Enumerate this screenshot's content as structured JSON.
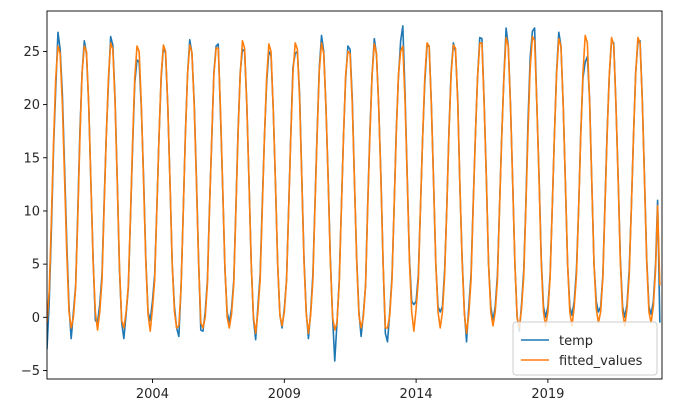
{
  "chart_data": {
    "type": "line",
    "title": "",
    "xlabel": "",
    "ylabel": "",
    "x_unit": "date",
    "xlim": [
      "2000-01-01",
      "2023-05-01"
    ],
    "ylim": [
      -5.8,
      28.8
    ],
    "grid": false,
    "legend": {
      "placement": "lower-right"
    },
    "x_ticks": [
      {
        "date": "2004-01-01",
        "label": "2004"
      },
      {
        "date": "2009-01-01",
        "label": "2009"
      },
      {
        "date": "2014-01-01",
        "label": "2014"
      },
      {
        "date": "2019-01-01",
        "label": "2019"
      }
    ],
    "y_ticks": [
      {
        "value": -5,
        "label": "−5"
      },
      {
        "value": 0,
        "label": "0"
      },
      {
        "value": 5,
        "label": "5"
      },
      {
        "value": 10,
        "label": "10"
      },
      {
        "value": 15,
        "label": "15"
      },
      {
        "value": 20,
        "label": "20"
      },
      {
        "value": 25,
        "label": "25"
      }
    ],
    "series": [
      {
        "name": "temp",
        "color": "#1f77b4",
        "note": "monthly values, starting January 2000",
        "start": "2000-01-01",
        "values": [
          -3.0,
          1.5,
          8.0,
          16.0,
          21.5,
          26.8,
          25.2,
          21.0,
          14.0,
          7.0,
          1.0,
          -2.0,
          0.5,
          3.0,
          9.5,
          17.5,
          23.0,
          26.0,
          24.8,
          20.0,
          12.5,
          5.5,
          -0.3,
          -0.5,
          1.2,
          4.0,
          10.5,
          17.0,
          22.0,
          26.4,
          25.6,
          20.5,
          12.8,
          4.5,
          -0.5,
          -2.0,
          0.3,
          2.8,
          9.0,
          16.0,
          22.0,
          24.2,
          24.0,
          19.5,
          13.0,
          5.5,
          0.5,
          -0.3,
          1.5,
          4.0,
          10.0,
          17.0,
          22.5,
          25.5,
          24.8,
          19.8,
          12.5,
          5.0,
          1.0,
          -1.0,
          -1.8,
          3.0,
          9.5,
          17.2,
          22.8,
          26.1,
          24.8,
          20.3,
          13.2,
          5.5,
          -1.2,
          -1.3,
          0.5,
          3.5,
          10.3,
          16.5,
          23.0,
          25.5,
          25.7,
          19.0,
          12.0,
          4.5,
          0.5,
          -0.5,
          0.8,
          3.5,
          10.0,
          17.5,
          23.0,
          25.2,
          25.0,
          20.0,
          12.5,
          5.0,
          -0.2,
          -2.1,
          1.0,
          4.0,
          10.5,
          17.0,
          22.0,
          25.0,
          24.6,
          19.5,
          12.5,
          5.0,
          0.2,
          -1.0,
          0.8,
          3.5,
          10.0,
          17.2,
          23.5,
          24.8,
          25.0,
          21.0,
          13.0,
          5.5,
          0.5,
          -2.0,
          0.5,
          4.0,
          10.5,
          17.5,
          23.5,
          26.5,
          25.0,
          19.8,
          13.0,
          5.5,
          0.0,
          -4.1,
          -0.5,
          3.5,
          10.0,
          17.0,
          22.5,
          25.5,
          25.2,
          20.5,
          12.5,
          5.5,
          0.5,
          -1.8,
          0.3,
          3.0,
          10.5,
          17.5,
          22.8,
          26.2,
          24.7,
          19.8,
          13.2,
          5.0,
          -1.5,
          -2.3,
          0.5,
          3.8,
          10.0,
          17.5,
          22.5,
          26.0,
          27.4,
          21.0,
          13.0,
          5.5,
          1.5,
          1.2,
          1.5,
          4.0,
          10.0,
          16.8,
          22.0,
          25.5,
          25.5,
          20.0,
          12.5,
          5.0,
          1.0,
          0.5,
          1.0,
          4.5,
          10.0,
          17.5,
          23.0,
          25.8,
          25.0,
          20.5,
          12.0,
          5.5,
          0.5,
          -2.3,
          1.0,
          4.0,
          10.5,
          17.0,
          22.5,
          26.3,
          26.2,
          20.2,
          13.0,
          5.0,
          1.0,
          -0.3,
          1.0,
          4.0,
          10.2,
          17.0,
          22.5,
          27.2,
          25.5,
          20.0,
          12.5,
          5.0,
          0.0,
          -1.3,
          1.2,
          4.5,
          10.5,
          18.5,
          24.5,
          26.9,
          27.2,
          20.0,
          13.2,
          5.5,
          1.0,
          0.0,
          1.0,
          4.0,
          10.0,
          17.0,
          23.0,
          26.8,
          25.5,
          20.0,
          12.5,
          5.0,
          1.0,
          0.2,
          1.5,
          4.5,
          10.0,
          17.5,
          22.5,
          24.0,
          24.5,
          20.5,
          12.5,
          5.0,
          1.5,
          0.5,
          1.0,
          4.0,
          10.5,
          17.5,
          22.8,
          26.0,
          25.8,
          20.0,
          13.0,
          5.5,
          1.0,
          0.0,
          1.2,
          4.5,
          10.0,
          17.0,
          23.0,
          25.8,
          26.0,
          20.5,
          13.0,
          5.5,
          1.0,
          0.3,
          1.5,
          5.0,
          11.0,
          -0.5
        ]
      },
      {
        "name": "fitted_values",
        "color": "#ff7f0e",
        "note": "monthly values, starting January 2000",
        "start": "2000-01-01",
        "values": [
          -0.5,
          2.5,
          9.0,
          16.5,
          22.5,
          25.5,
          24.8,
          20.0,
          13.0,
          6.0,
          0.5,
          -1.0,
          0.0,
          2.8,
          9.0,
          16.8,
          23.0,
          25.5,
          25.0,
          20.0,
          12.5,
          5.2,
          0.5,
          -1.2,
          0.5,
          3.5,
          10.0,
          17.0,
          22.5,
          25.8,
          25.2,
          20.2,
          12.5,
          4.8,
          -0.3,
          -1.0,
          0.5,
          3.0,
          9.2,
          16.5,
          22.5,
          25.5,
          25.0,
          19.8,
          12.5,
          5.2,
          0.3,
          -1.3,
          0.8,
          3.5,
          10.0,
          17.0,
          22.8,
          25.6,
          25.0,
          19.8,
          12.5,
          5.0,
          0.5,
          -1.0,
          -0.8,
          2.8,
          9.5,
          17.0,
          22.8,
          25.6,
          24.9,
          20.0,
          12.8,
          5.2,
          -0.5,
          -1.0,
          0.0,
          3.2,
          10.0,
          16.8,
          22.8,
          25.3,
          25.3,
          19.5,
          12.0,
          4.8,
          0.0,
          -1.0,
          0.3,
          3.2,
          9.8,
          17.2,
          22.8,
          26.0,
          25.3,
          19.8,
          12.5,
          5.0,
          0.0,
          -1.5,
          0.5,
          3.5,
          10.0,
          17.0,
          22.5,
          25.7,
          25.0,
          19.5,
          12.5,
          5.0,
          0.2,
          -0.8,
          0.5,
          3.5,
          9.8,
          17.0,
          23.0,
          25.8,
          25.2,
          20.5,
          12.8,
          5.2,
          0.3,
          -1.5,
          0.2,
          3.5,
          10.2,
          17.2,
          23.2,
          25.8,
          24.8,
          19.8,
          12.8,
          5.2,
          0.0,
          -1.2,
          -0.5,
          3.2,
          9.8,
          17.0,
          22.8,
          25.0,
          24.8,
          20.0,
          12.5,
          5.2,
          0.2,
          -1.0,
          0.0,
          3.0,
          10.2,
          17.2,
          22.8,
          25.7,
          24.8,
          19.8,
          12.8,
          5.0,
          -1.0,
          -1.0,
          0.2,
          3.5,
          10.0,
          17.2,
          22.8,
          25.0,
          25.5,
          20.3,
          12.8,
          5.2,
          0.5,
          -1.3,
          0.8,
          3.5,
          10.0,
          16.8,
          22.5,
          25.8,
          25.5,
          19.8,
          12.5,
          5.0,
          0.5,
          -1.0,
          0.5,
          4.0,
          10.0,
          17.2,
          22.8,
          25.6,
          25.3,
          20.2,
          12.2,
          5.2,
          0.3,
          -1.5,
          0.3,
          3.5,
          10.2,
          17.0,
          22.5,
          25.8,
          25.8,
          20.0,
          12.8,
          5.0,
          0.5,
          -0.8,
          0.5,
          3.5,
          10.0,
          16.8,
          22.5,
          26.3,
          25.5,
          19.8,
          12.5,
          5.0,
          0.0,
          -1.0,
          0.8,
          4.0,
          10.2,
          17.5,
          23.5,
          26.4,
          26.0,
          20.0,
          12.8,
          5.2,
          0.5,
          -0.8,
          0.5,
          3.8,
          10.0,
          17.0,
          22.8,
          26.2,
          25.5,
          20.0,
          12.5,
          5.0,
          0.5,
          -0.8,
          1.0,
          4.0,
          10.0,
          17.2,
          23.0,
          26.5,
          25.8,
          20.2,
          12.5,
          5.0,
          0.8,
          -0.5,
          0.5,
          3.8,
          10.2,
          17.2,
          22.8,
          26.3,
          25.6,
          20.0,
          12.8,
          5.2,
          0.5,
          -0.8,
          0.8,
          4.0,
          10.0,
          17.0,
          22.8,
          26.3,
          25.8,
          20.3,
          12.8,
          5.2,
          0.5,
          -0.5,
          1.0,
          4.5,
          10.5,
          3.0
        ]
      }
    ]
  }
}
